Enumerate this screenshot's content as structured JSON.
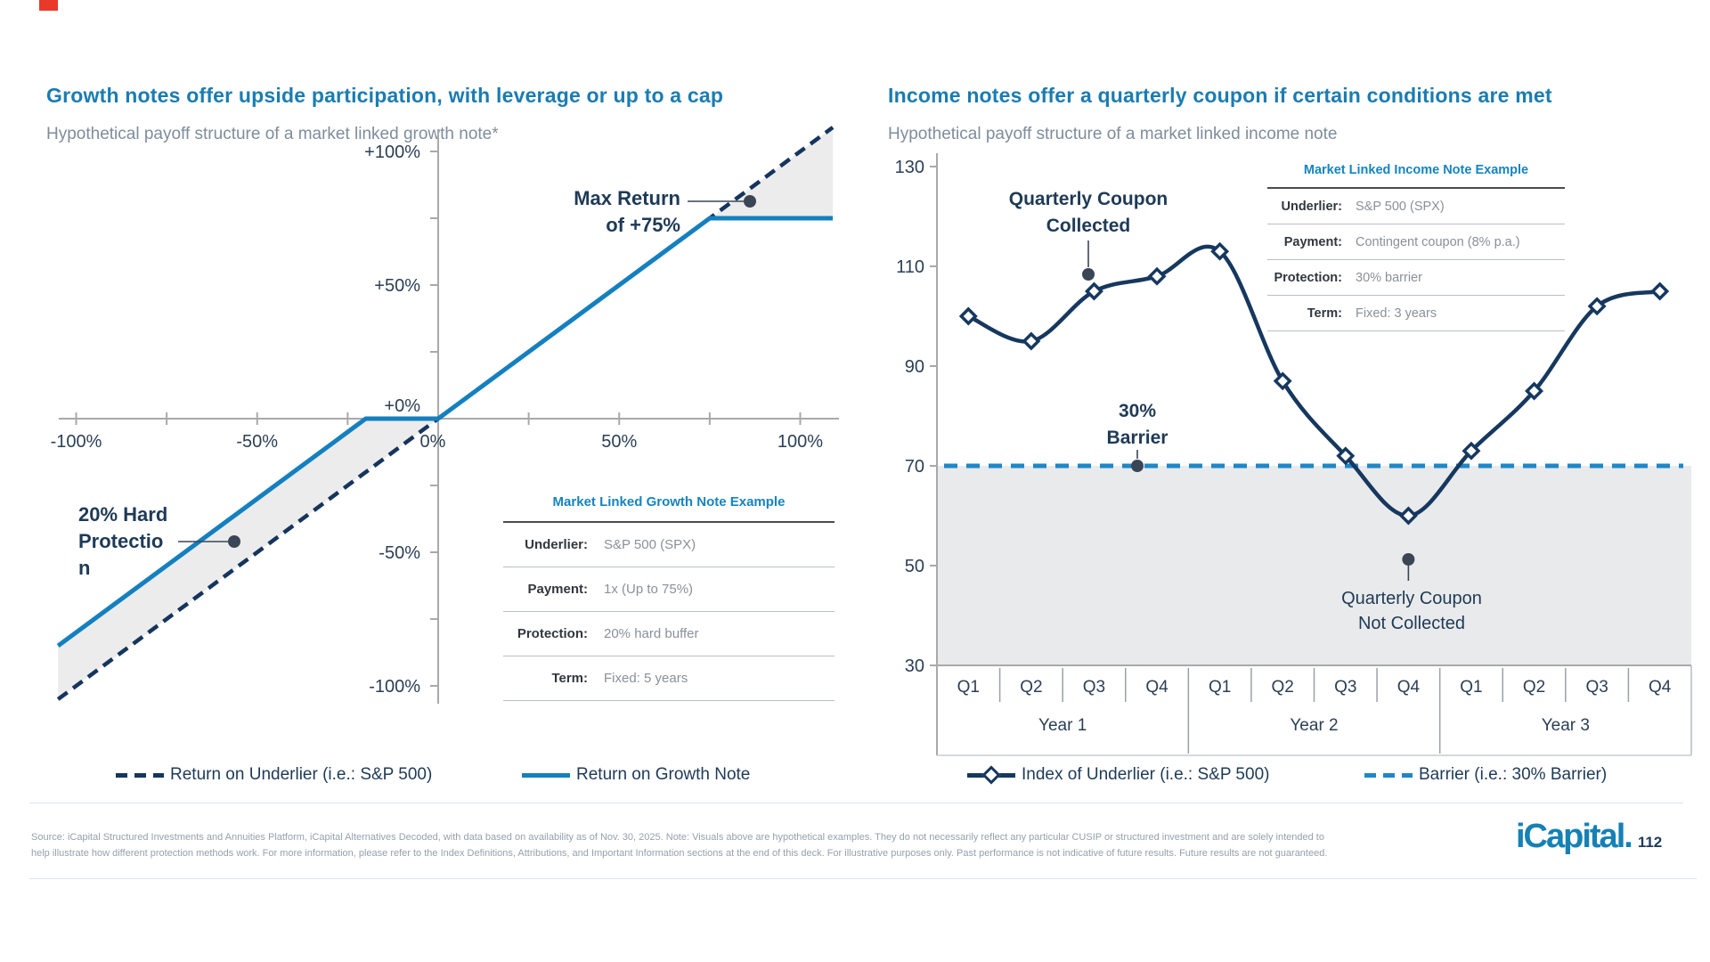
{
  "slide": {
    "footer_line1": "Source: iCapital Structured Investments and Annuities Platform, iCapital Alternatives Decoded, with data based on availability as of Nov. 30, 2025. Note: Visuals above are hypothetical examples. They do not necessarily reflect any particular CUSIP or structured investment and are solely intended to",
    "footer_line2": "help illustrate how different protection methods work. For more information, please refer to the Index Definitions, Attributions, and Important Information sections at the end of this deck. For illustrative purposes only. Past performance is not indicative of future results. Future results are not guaranteed.",
    "logo_text": "iCapital.",
    "page_number": "112",
    "accent_color": "#e8392b"
  },
  "chart_data": [
    {
      "type": "line",
      "title": "Growth notes offer upside participation, with leverage or up to a cap",
      "subtitle": "Hypothetical payoff structure of a market linked growth note*",
      "xlim": [
        -105,
        109
      ],
      "ylim": [
        -107,
        107
      ],
      "x_ticks": [
        {
          "label": "-100%",
          "value": -100
        },
        {
          "label": "-50%",
          "value": -50
        },
        {
          "label": "0%",
          "value": 0
        },
        {
          "label": "50%",
          "value": 50
        },
        {
          "label": "100%",
          "value": 100
        }
      ],
      "x_minor_ticks": [
        -75,
        -25,
        25,
        75
      ],
      "y_ticks": [
        {
          "label": "+100%",
          "value": 100
        },
        {
          "label": "+50%",
          "value": 50
        },
        {
          "label": "+0%",
          "value": 0
        },
        {
          "label": "-50%",
          "value": -50
        },
        {
          "label": "-100%",
          "value": -100
        }
      ],
      "y_minor_ticks": [
        75,
        25,
        -25,
        -75
      ],
      "buffer_pct": 20,
      "cap_pct": 75,
      "series": [
        {
          "name": "Return on Underlier (i.e.: S&P 500)",
          "style": "dashed",
          "color": "#15355e",
          "points": [
            [
              -105,
              -105
            ],
            [
              109,
              109
            ]
          ]
        },
        {
          "name": "Return on Growth Note",
          "style": "solid",
          "color": "#1480bf",
          "points": [
            [
              -105,
              -85
            ],
            [
              -20,
              0
            ],
            [
              0,
              0
            ],
            [
              75,
              75
            ],
            [
              109,
              75
            ]
          ]
        }
      ],
      "annotations": {
        "max_return": {
          "lines": [
            "Max Return",
            "of +75%"
          ]
        },
        "protection": {
          "lines": [
            "20% Hard",
            "Protectio",
            "n"
          ]
        }
      }
    },
    {
      "type": "line",
      "title": "Income notes offer a quarterly coupon if certain conditions are met",
      "subtitle": "Hypothetical payoff structure of a market linked income note",
      "categories": [
        "Q1",
        "Q2",
        "Q3",
        "Q4",
        "Q1",
        "Q2",
        "Q3",
        "Q4",
        "Q1",
        "Q2",
        "Q3",
        "Q4"
      ],
      "year_groups": [
        "Year 1",
        "Year 2",
        "Year 3"
      ],
      "values": [
        100,
        95,
        105,
        108,
        113,
        87,
        72,
        60,
        73,
        85,
        102,
        105
      ],
      "barrier_value": 70,
      "ylim": [
        30,
        130
      ],
      "y_ticks": [
        130,
        110,
        90,
        70,
        50,
        30
      ],
      "series_name": "Index of Underlier (i.e.: S&P 500)",
      "barrier_name": "Barrier (i.e.: 30% Barrier)",
      "annotations": {
        "coupon_collected": {
          "lines": [
            "Quarterly Coupon",
            "Collected"
          ]
        },
        "barrier": {
          "lines": [
            "30%",
            "Barrier"
          ]
        },
        "coupon_not_collected": {
          "lines": [
            "Quarterly Coupon",
            "Not Collected"
          ]
        }
      }
    }
  ],
  "left_panel": {
    "table": {
      "title": "Market Linked Growth Note Example",
      "rows": [
        {
          "label": "Underlier:",
          "value": "S&P 500 (SPX)"
        },
        {
          "label": "Payment:",
          "value": "1x (Up to 75%)"
        },
        {
          "label": "Protection:",
          "value": "20% hard buffer"
        },
        {
          "label": "Term:",
          "value": "Fixed: 5 years"
        }
      ]
    },
    "legend": [
      {
        "style": "dashed-navy",
        "label": "Return on Underlier (i.e.: S&P 500)"
      },
      {
        "style": "solid-blue",
        "label": "Return on Growth Note"
      }
    ]
  },
  "right_panel": {
    "table": {
      "title": "Market Linked Income Note Example",
      "rows": [
        {
          "label": "Underlier:",
          "value": "S&P 500 (SPX)"
        },
        {
          "label": "Payment:",
          "value": "Contingent coupon (8% p.a.)"
        },
        {
          "label": "Protection:",
          "value": "30% barrier"
        },
        {
          "label": "Term:",
          "value": "Fixed: 3 years"
        }
      ]
    },
    "legend": [
      {
        "style": "diamond-navy",
        "label": "Index of Underlier (i.e.: S&P 500)"
      },
      {
        "style": "dashed-lightblue",
        "label": "Barrier (i.e.: 30% Barrier)"
      }
    ]
  },
  "colors": {
    "title_blue": "#1a7cb3",
    "note_line_blue": "#1480bf",
    "underlier_navy": "#15355e",
    "curve_navy": "#16385f",
    "barrier_blue": "#1d87c9",
    "annotation_navy": "#1e3a57",
    "axis_gray": "#a9a9a9",
    "fill_gray": "#e9eaeb"
  }
}
